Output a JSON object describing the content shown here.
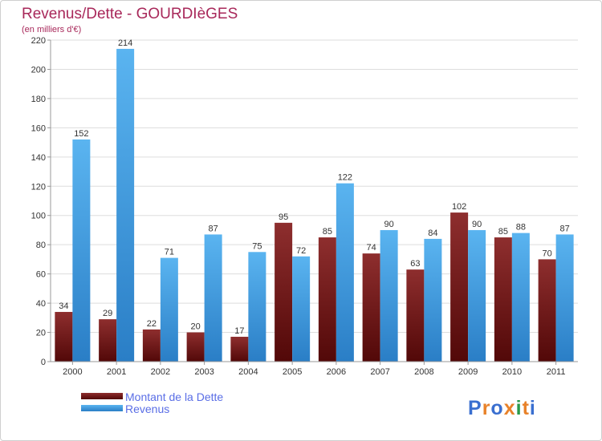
{
  "chart_data": {
    "type": "bar",
    "title": "Revenus/Dette - GOURDIèGES",
    "subtitle": "(en milliers d'€)",
    "categories": [
      "2000",
      "2001",
      "2002",
      "2003",
      "2004",
      "2005",
      "2006",
      "2007",
      "2008",
      "2009",
      "2010",
      "2011"
    ],
    "series": [
      {
        "name": "Montant de la Dette",
        "color": "#7a1d1d",
        "values": [
          34,
          29,
          22,
          20,
          17,
          95,
          85,
          74,
          63,
          102,
          85,
          70
        ]
      },
      {
        "name": "Revenus",
        "color": "#4aa3e6",
        "values": [
          152,
          214,
          71,
          87,
          75,
          72,
          122,
          90,
          84,
          90,
          88,
          87
        ]
      }
    ],
    "ylim": [
      0,
      220
    ],
    "yticks": [
      0,
      20,
      40,
      60,
      80,
      100,
      120,
      140,
      160,
      180,
      200,
      220
    ],
    "grid": true,
    "legend": "bottom-left",
    "xlabel": "",
    "ylabel": ""
  },
  "logo": {
    "text": "Proxiti"
  }
}
